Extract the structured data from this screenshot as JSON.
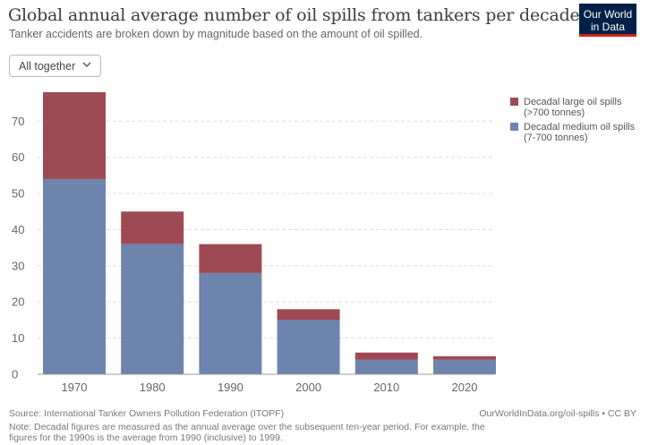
{
  "header": {
    "title": "Global annual average number of oil spills from tankers per decade",
    "subtitle": "Tanker accidents are broken down by magnitude based on the amount of oil spilled."
  },
  "logo": {
    "line1": "Our World",
    "line2": "in Data"
  },
  "controls": {
    "dropdown_label": "All together"
  },
  "chart_data": {
    "type": "bar",
    "stacked": true,
    "categories": [
      "1970",
      "1980",
      "1990",
      "2000",
      "2010",
      "2020"
    ],
    "series": [
      {
        "name": "Decadal medium oil spills (7-700 tonnes)",
        "color": "#6d84ad",
        "values": [
          54,
          36,
          28,
          15,
          4,
          4
        ]
      },
      {
        "name": "Decadal large oil spills (>700 tonnes)",
        "color": "#9e4a55",
        "values": [
          24,
          9,
          8,
          3,
          2,
          1
        ]
      }
    ],
    "ylim": [
      0,
      78
    ],
    "yticks": [
      0,
      10,
      20,
      30,
      40,
      50,
      60,
      70
    ],
    "grid": true,
    "legend": {
      "position": "right",
      "items": [
        {
          "line1": "Decadal large oil spills",
          "line2": "(>700 tonnes)",
          "color": "#9e4a55"
        },
        {
          "line1": "Decadal medium oil spills",
          "line2": "(7-700 tonnes)",
          "color": "#6d84ad"
        }
      ]
    }
  },
  "footer": {
    "source": "Source: International Tanker Owners Pollution Federation (ITOPF)",
    "url": "OurWorldInData.org/oil-spills • CC BY",
    "note": "Note: Decadal figures are measured as the annual average over the subsequent ten-year period. For example, the figures for the 1990s is the average from 1990 (inclusive) to 1999."
  }
}
